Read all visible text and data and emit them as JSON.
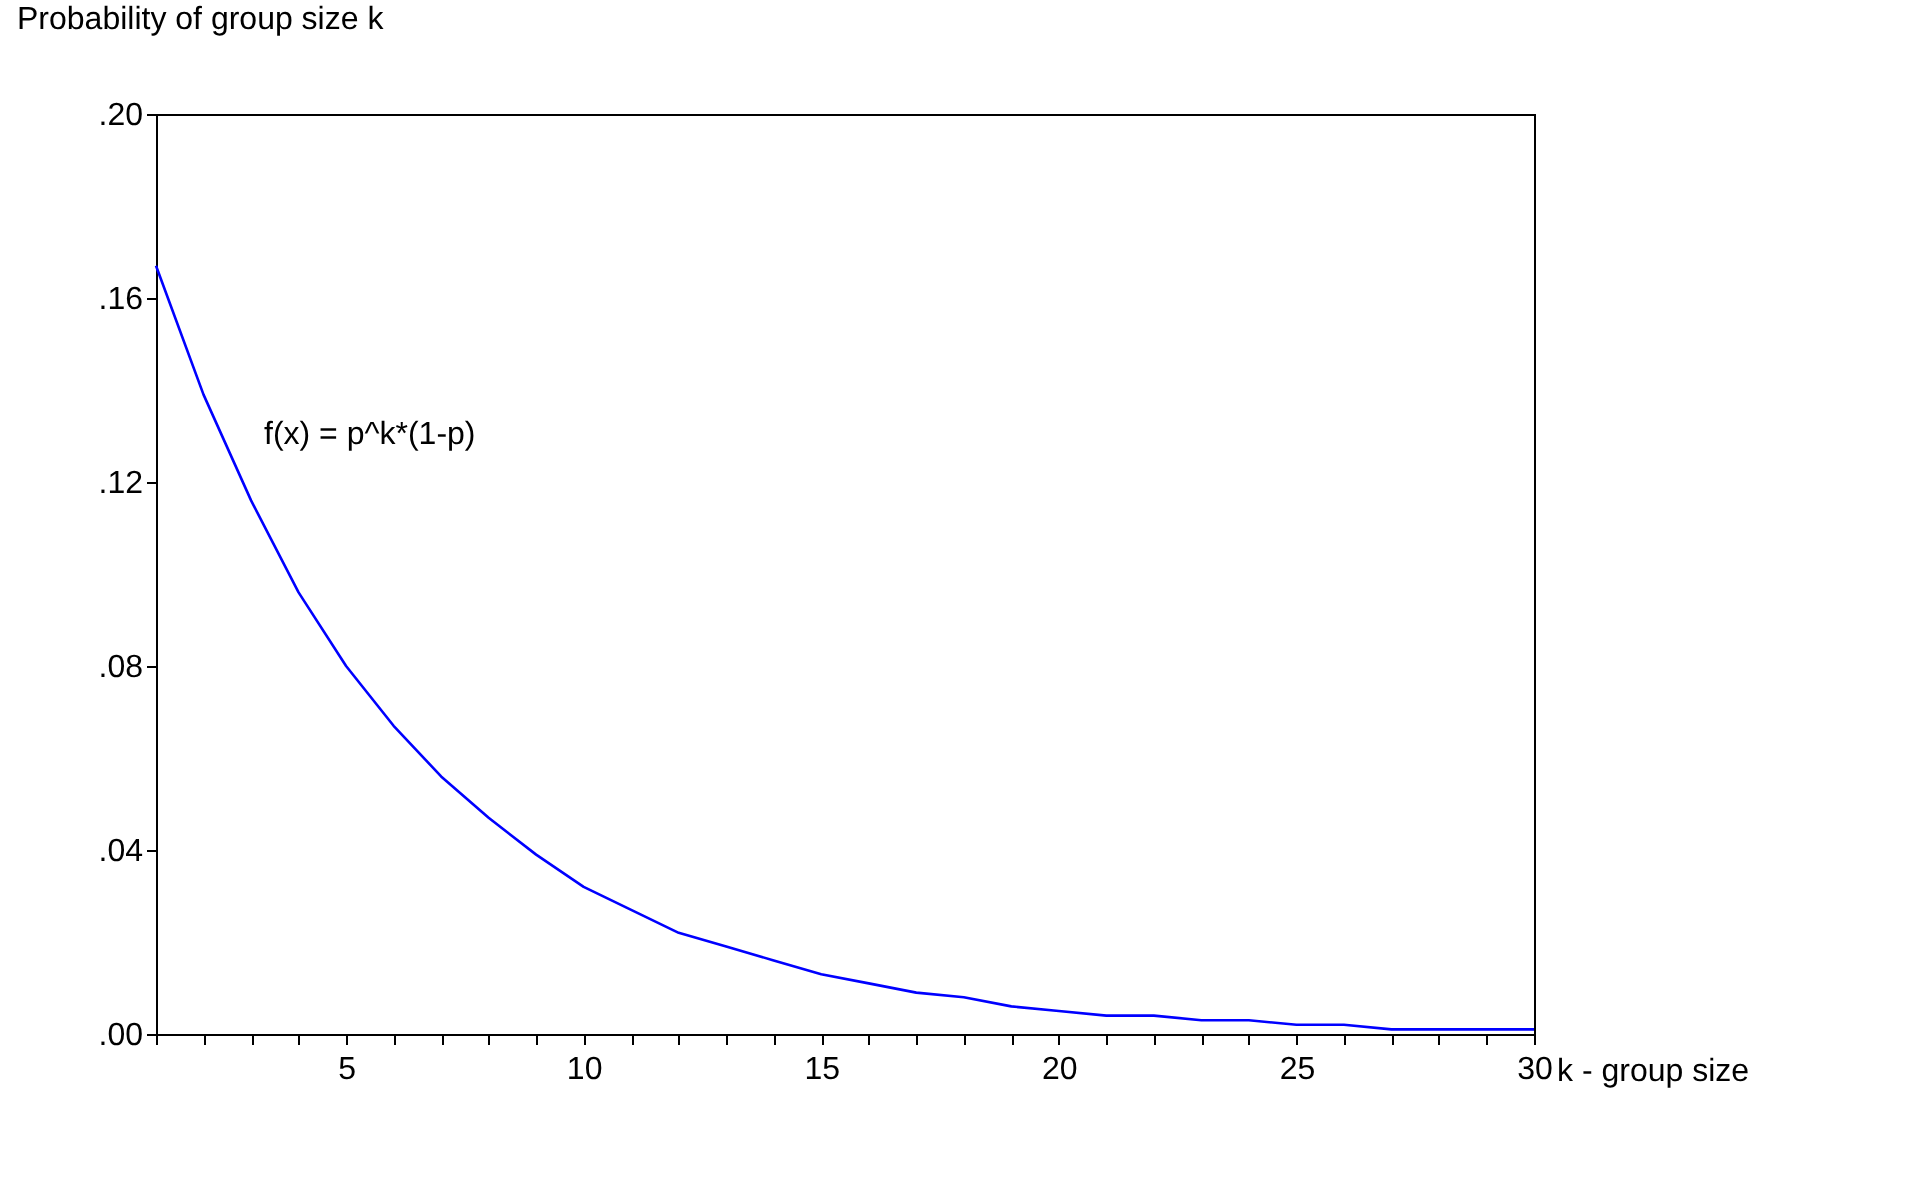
{
  "chart_data": {
    "type": "line",
    "xlabel": "k - group size",
    "ylabel": "Probability of group size k",
    "x": [
      1,
      2,
      3,
      4,
      5,
      6,
      7,
      8,
      9,
      10,
      11,
      12,
      13,
      14,
      15,
      16,
      17,
      18,
      19,
      20,
      21,
      22,
      23,
      24,
      25,
      26,
      27,
      28,
      29,
      30
    ],
    "series": [
      {
        "color": "#0000ff",
        "values": [
          0.167,
          0.139,
          0.116,
          0.096,
          0.08,
          0.067,
          0.056,
          0.047,
          0.039,
          0.032,
          0.027,
          0.022,
          0.019,
          0.016,
          0.013,
          0.011,
          0.009,
          0.008,
          0.006,
          0.005,
          0.004,
          0.004,
          0.003,
          0.003,
          0.002,
          0.002,
          0.001,
          0.001,
          0.001,
          0.001
        ]
      }
    ],
    "xlim": [
      1,
      30
    ],
    "xticks": [
      {
        "value": 1,
        "label": null
      },
      {
        "value": 2,
        "label": null
      },
      {
        "value": 3,
        "label": null
      },
      {
        "value": 4,
        "label": null
      },
      5,
      {
        "value": 6,
        "label": null
      },
      {
        "value": 7,
        "label": null
      },
      {
        "value": 8,
        "label": null
      },
      {
        "value": 9,
        "label": null
      },
      10,
      {
        "value": 11,
        "label": null
      },
      {
        "value": 12,
        "label": null
      },
      {
        "value": 13,
        "label": null
      },
      {
        "value": 14,
        "label": null
      },
      15,
      {
        "value": 16,
        "label": null
      },
      {
        "value": 17,
        "label": null
      },
      {
        "value": 18,
        "label": null
      },
      {
        "value": 19,
        "label": null
      },
      20,
      {
        "value": 21,
        "label": null
      },
      {
        "value": 22,
        "label": null
      },
      {
        "value": 23,
        "label": null
      },
      {
        "value": 24,
        "label": null
      },
      25,
      {
        "value": 26,
        "label": null
      },
      {
        "value": 27,
        "label": null
      },
      {
        "value": 28,
        "label": null
      },
      {
        "value": 29,
        "label": null
      },
      30
    ],
    "ylim": [
      0,
      0.2
    ],
    "yticks": [
      {
        "value": 0,
        "label": ".00"
      },
      {
        "value": 0.04,
        "label": ".04"
      },
      {
        "value": 0.08,
        "label": ".08"
      },
      {
        "value": 0.12,
        "label": ".12"
      },
      {
        "value": 0.16,
        "label": ".16"
      },
      {
        "value": 0.2,
        "label": ".20"
      }
    ],
    "annotations": [
      "f(x) = p^k*(1-p)"
    ],
    "grid": false,
    "legend": false,
    "marker": "none",
    "line_style": "solid"
  }
}
